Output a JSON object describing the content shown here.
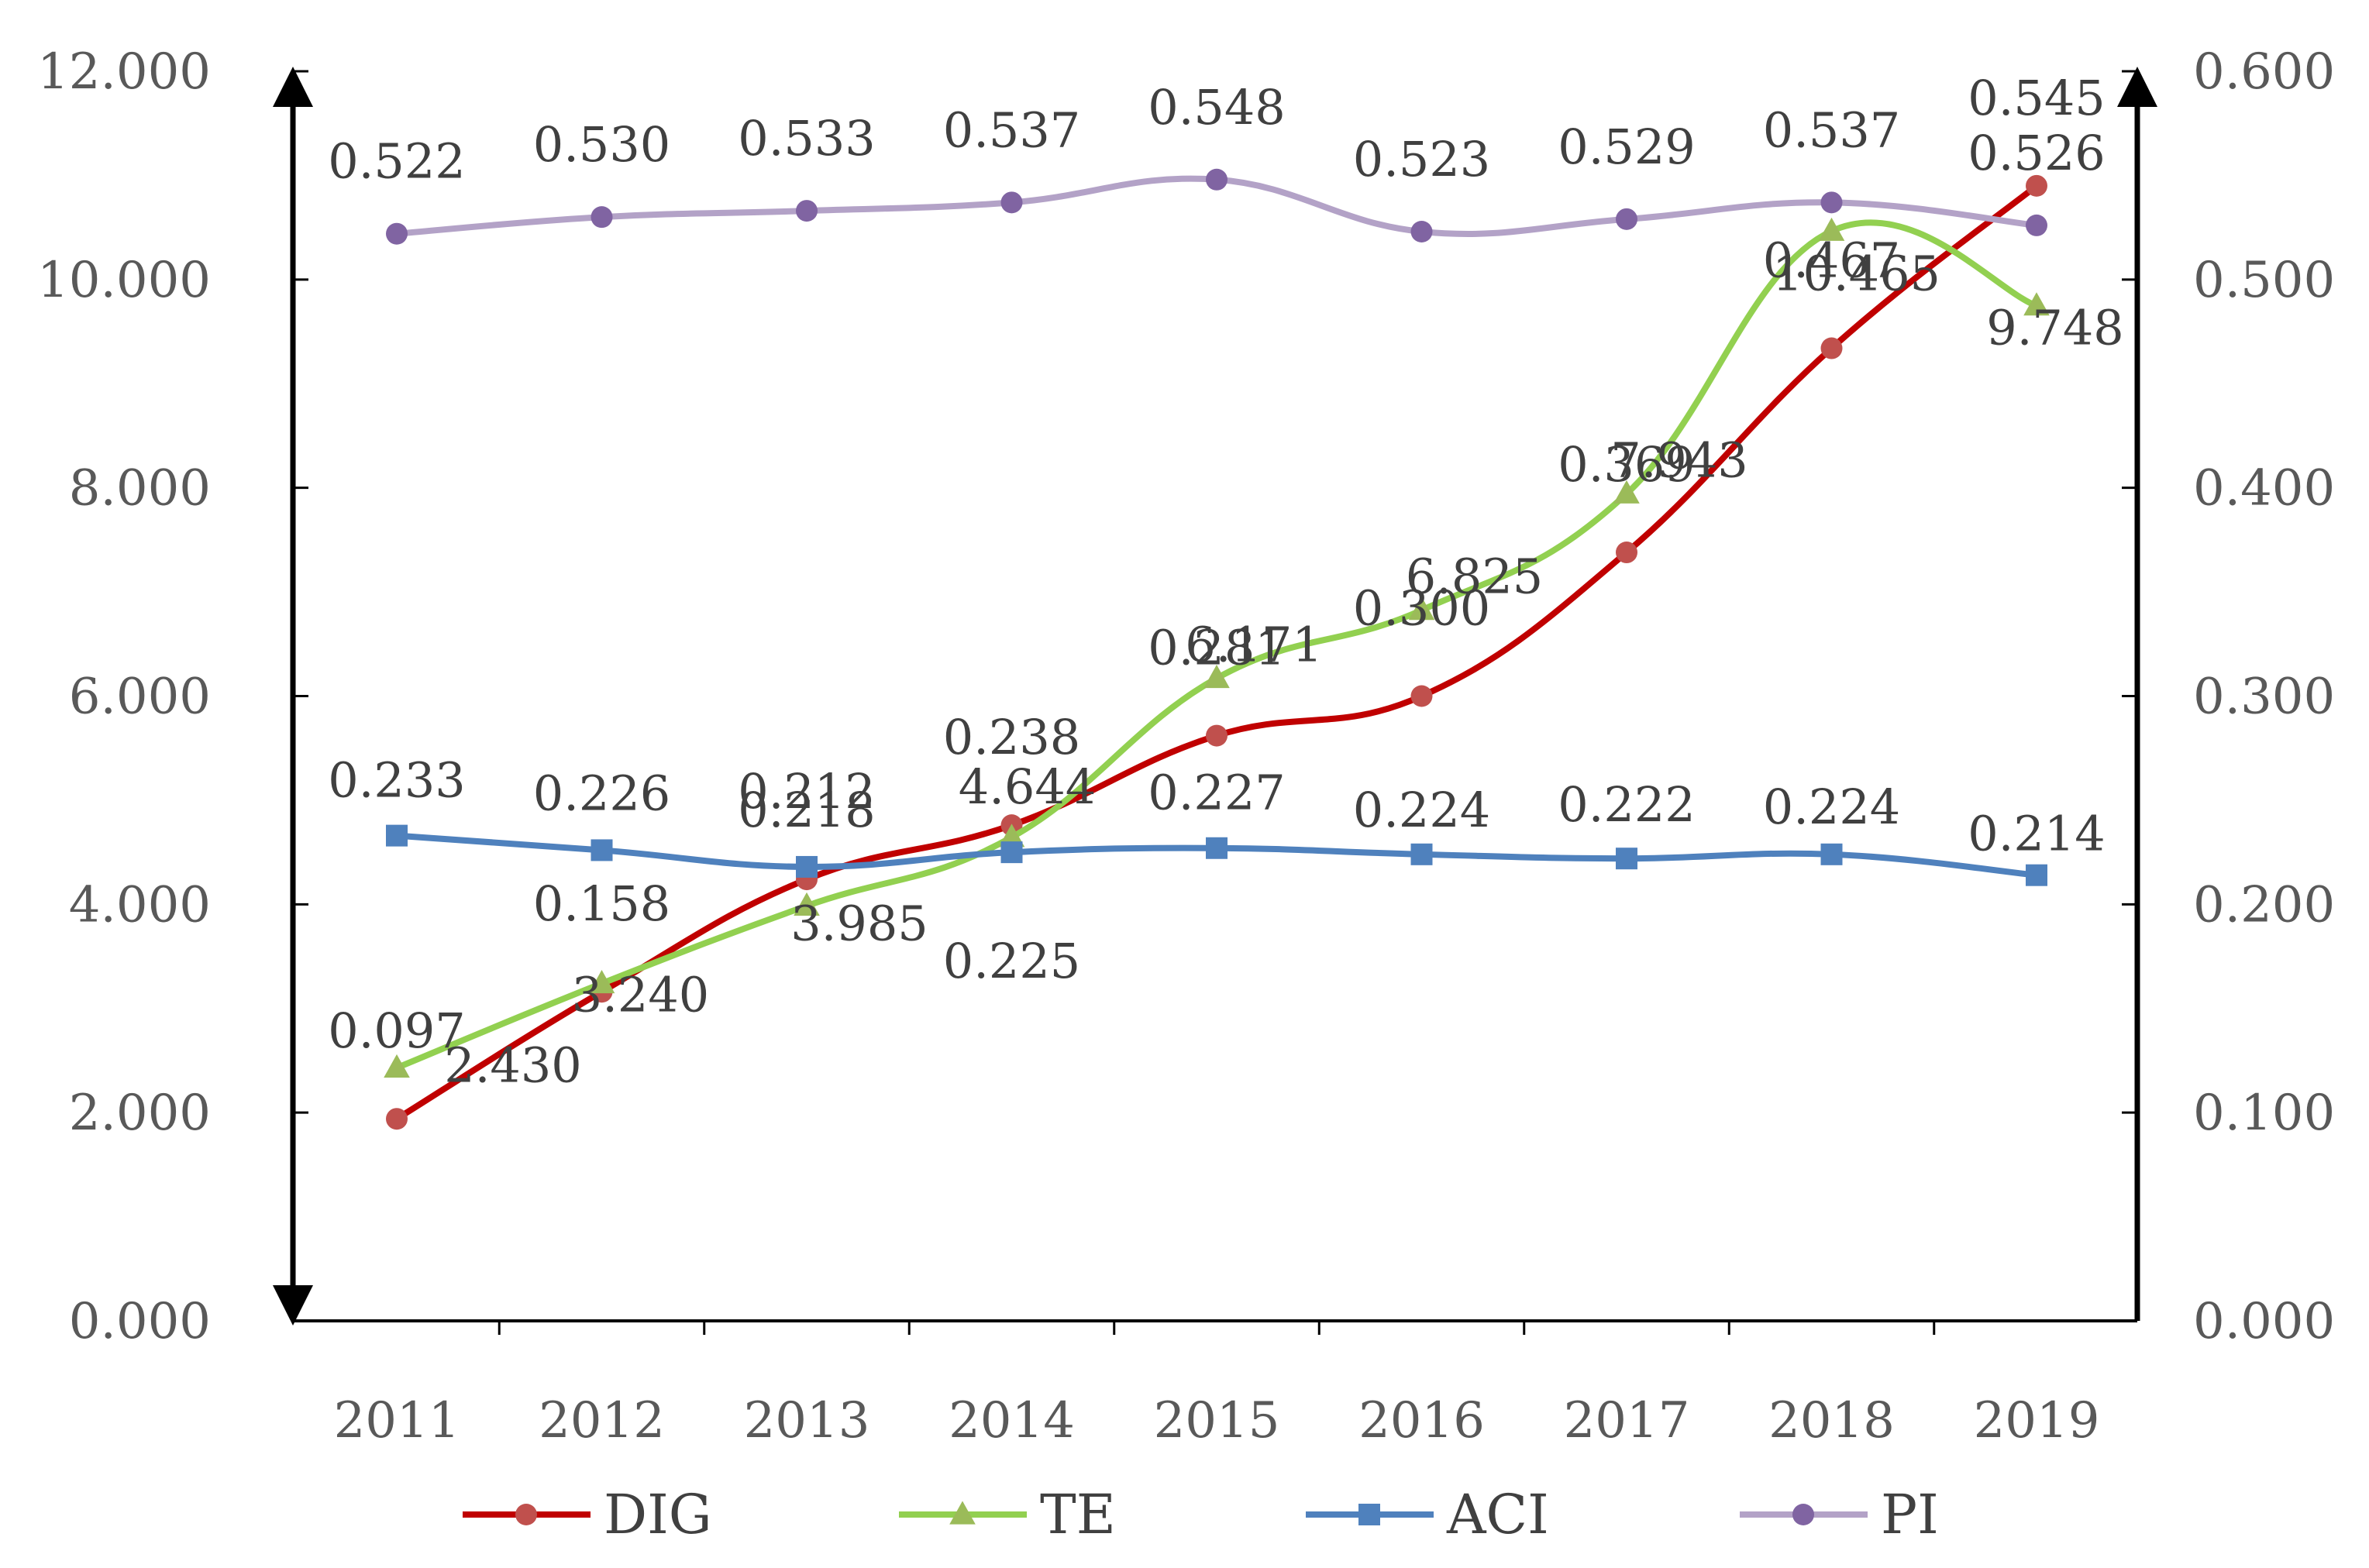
{
  "chart_data": {
    "type": "line",
    "categories": [
      "2011",
      "2012",
      "2013",
      "2014",
      "2015",
      "2016",
      "2017",
      "2018",
      "2019"
    ],
    "axes": {
      "left": {
        "ylim": [
          0,
          12
        ],
        "ticks": [
          "0.000",
          "2.000",
          "4.000",
          "6.000",
          "8.000",
          "10.000",
          "12.000"
        ]
      },
      "right": {
        "ylim": [
          0,
          0.6
        ],
        "ticks": [
          "0.000",
          "0.100",
          "0.200",
          "0.300",
          "0.400",
          "0.500",
          "0.600"
        ]
      }
    },
    "series": [
      {
        "name": "DIG",
        "axis": "right",
        "color": "#C00000",
        "marker": "circle",
        "marker_color": "#C0504D",
        "values": [
          0.097,
          0.158,
          0.212,
          0.238,
          0.281,
          0.3,
          0.369,
          0.467,
          0.545
        ],
        "labels": [
          "0.097",
          "0.158",
          "0.212",
          "0.238",
          "0.281",
          "0.300",
          "0.369",
          "0.467",
          "0.545"
        ]
      },
      {
        "name": "TE",
        "axis": "left",
        "color": "#92D050",
        "marker": "triangle",
        "marker_color": "#9BBB59",
        "values": [
          2.43,
          3.24,
          3.985,
          4.644,
          6.171,
          6.825,
          7.943,
          10.465,
          9.748
        ],
        "labels": [
          "2.430",
          "3.240",
          "3.985",
          "4.644",
          "6.171",
          "6.825",
          "7.943",
          "10.465",
          "9.748"
        ]
      },
      {
        "name": "ACI",
        "axis": "right",
        "color": "#4F81BD",
        "marker": "square",
        "marker_color": "#4F81BD",
        "values": [
          0.233,
          0.226,
          0.218,
          0.225,
          0.227,
          0.224,
          0.222,
          0.224,
          0.214
        ],
        "labels": [
          "0.233",
          "0.226",
          "0.218",
          "0.225",
          "0.227",
          "0.224",
          "0.222",
          "0.224",
          "0.214"
        ]
      },
      {
        "name": "PI",
        "axis": "right",
        "color": "#B3A2C7",
        "marker": "circle",
        "marker_color": "#8064A2",
        "values": [
          0.522,
          0.53,
          0.533,
          0.537,
          0.548,
          0.523,
          0.529,
          0.537,
          0.526
        ],
        "labels": [
          "0.522",
          "0.530",
          "0.533",
          "0.537",
          "0.548",
          "0.523",
          "0.529",
          "0.537",
          "0.526"
        ]
      }
    ],
    "grid": false,
    "legend": "bottom"
  }
}
